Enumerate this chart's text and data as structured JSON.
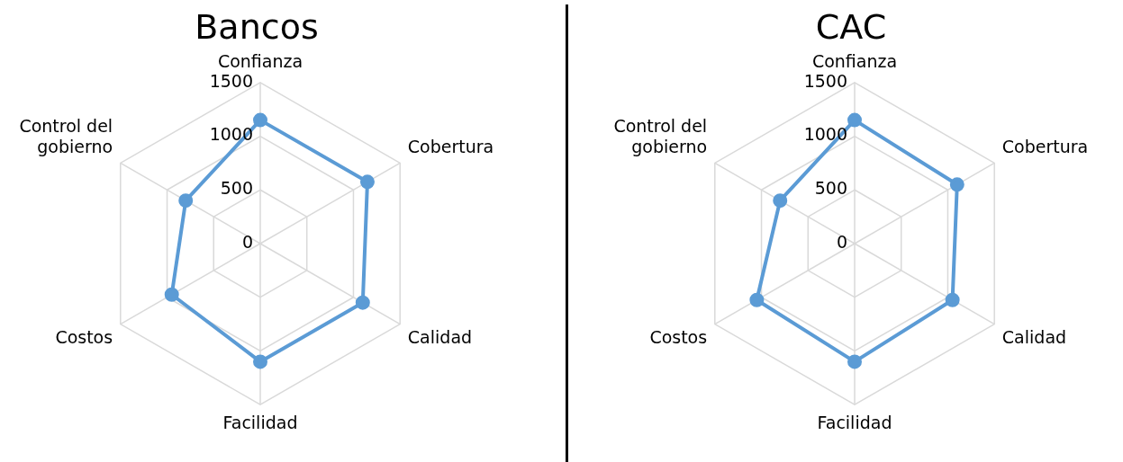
{
  "chart_data": [
    {
      "type": "radar",
      "title": "Bancos",
      "categories": [
        "Confianza",
        "Cobertura",
        "Calidad",
        "Facilidad",
        "Costos",
        "Control del gobierno"
      ],
      "series": [
        {
          "color": "#5b9bd5",
          "values": [
            1150,
            1150,
            1100,
            1100,
            950,
            800
          ]
        }
      ],
      "ylim": [
        0,
        1500
      ],
      "yticks": [
        0,
        500,
        1000,
        1500
      ],
      "grid": true,
      "marker": "circle"
    },
    {
      "type": "radar",
      "title": "CAC",
      "categories": [
        "Confianza",
        "Cobertura",
        "Calidad",
        "Facilidad",
        "Costos",
        "Control del gobierno"
      ],
      "series": [
        {
          "color": "#5b9bd5",
          "values": [
            1150,
            1100,
            1050,
            1100,
            1050,
            800
          ]
        }
      ],
      "ylim": [
        0,
        1500
      ],
      "yticks": [
        0,
        500,
        1000,
        1500
      ],
      "grid": true,
      "marker": "circle"
    }
  ]
}
